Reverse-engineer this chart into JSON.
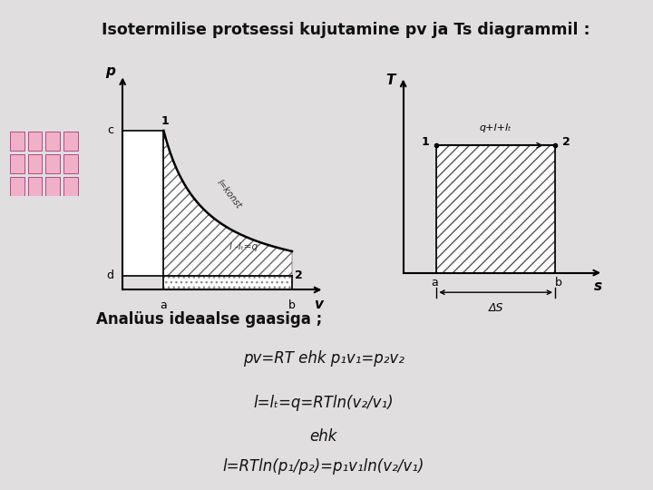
{
  "bg_color": "#e0dede",
  "left_panel_color": "#9B1B6A",
  "left_panel2_color": "#7A1055",
  "slide_bg": "#f5f5f5",
  "title": "Isotermilise protsessi kujutamine pv ja Ts diagrammil :",
  "title_fontsize": 12.5,
  "text_line1": "Analüus ideaalse gaasiga ;",
  "text_line2": "pv=RT ehk p₁v₁=p₂v₂",
  "text_line3": "l=lₜ=q=RTln(v₂/v₁)",
  "text_line4": "ehk",
  "text_line5": "l=RTln(p₁/p₂)=p₁v₁ln(v₂/v₁)",
  "hatch_pattern": "///",
  "hatch_color": "#555555",
  "grid_color": "#e8c0d0",
  "pv_label_inside1": "l=konst",
  "pv_label_inside2": "l -lₜ=q",
  "ts_label_inside": "q+l+lₜ"
}
